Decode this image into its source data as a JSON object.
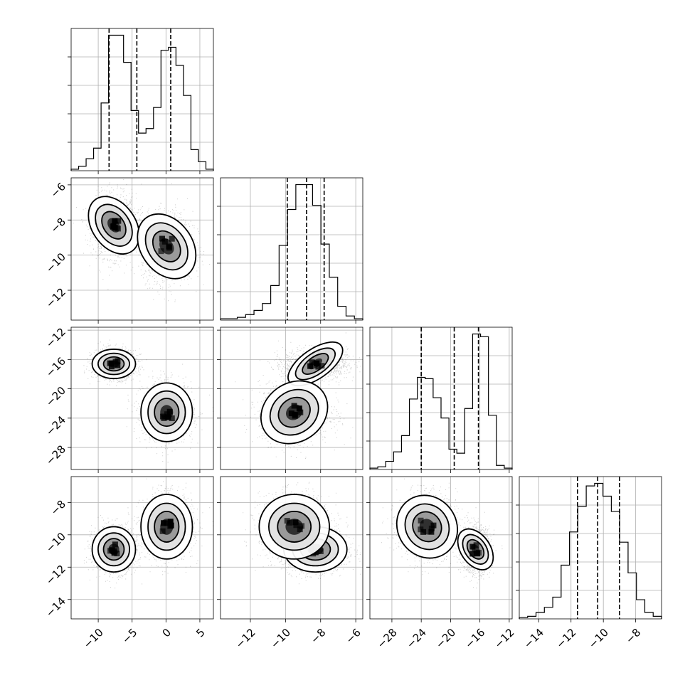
{
  "chart_data": {
    "type": "corner",
    "dimensions": 4,
    "params": [
      {
        "range": [
          -14,
          7
        ],
        "ticks": [
          -10,
          -5,
          0,
          5
        ],
        "tick_labels": [
          "−10",
          "−5",
          "0",
          "5"
        ],
        "quantiles": [
          -8.4,
          -4.3,
          0.7
        ]
      },
      {
        "range": [
          -13.7,
          -5.6
        ],
        "ticks": [
          -12,
          -10,
          -8,
          -6
        ],
        "tick_labels": [
          "−12",
          "−10",
          "−8",
          "−6"
        ],
        "quantiles": [
          -9.9,
          -8.8,
          -7.8
        ]
      },
      {
        "range": [
          -31,
          -11.6
        ],
        "ticks": [
          -28,
          -24,
          -20,
          -16,
          -12
        ],
        "tick_labels": [
          "−28",
          "−24",
          "−20",
          "−16",
          "−12"
        ],
        "quantiles": [
          -24.0,
          -19.5,
          -16.2
        ]
      },
      {
        "range": [
          -15.2,
          -6.4
        ],
        "ticks": [
          -14,
          -12,
          -10,
          -8
        ],
        "tick_labels": [
          "−14",
          "−12",
          "−10",
          "−8"
        ],
        "quantiles": [
          -11.6,
          -10.35,
          -9.0
        ]
      }
    ],
    "histograms": [
      {
        "param": 0,
        "counts": [
          1,
          3,
          8,
          15,
          45,
          90,
          90,
          72,
          40,
          25,
          28,
          42,
          80,
          82,
          70,
          50,
          14,
          6,
          1
        ]
      },
      {
        "param": 1,
        "counts": [
          1,
          1,
          2,
          4,
          7,
          12,
          25,
          54,
          80,
          98,
          98,
          83,
          55,
          31,
          10,
          3,
          1
        ]
      },
      {
        "param": 2,
        "counts": [
          1,
          2,
          6,
          13,
          25,
          52,
          68,
          67,
          53,
          38,
          15,
          12,
          45,
          100,
          98,
          40,
          3,
          1
        ]
      },
      {
        "param": 3,
        "counts": [
          1,
          2,
          5,
          9,
          17,
          42,
          68,
          88,
          104,
          106,
          96,
          84,
          60,
          36,
          15,
          5,
          2
        ]
      }
    ],
    "components": [
      {
        "weight": 0.5,
        "mean": [
          -7.7,
          -8.3,
          -16.6,
          -10.9
        ],
        "sd": [
          1.6,
          0.9,
          1.0,
          0.7
        ]
      },
      {
        "weight": 0.5,
        "mean": [
          0.1,
          -9.5,
          -23.2,
          -9.5
        ],
        "sd": [
          1.9,
          1.0,
          2.0,
          1.0
        ]
      }
    ],
    "grid": true,
    "title": "",
    "xlabel": "",
    "ylabel": ""
  }
}
